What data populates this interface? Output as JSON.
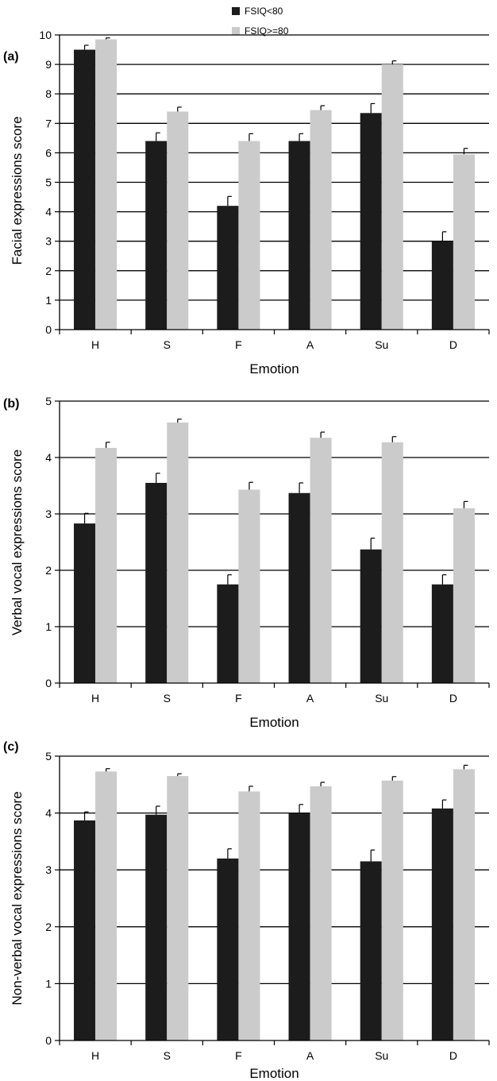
{
  "legend": {
    "series1_label": "FSIQ<80",
    "series2_label": "FSIQ>=80",
    "placement": "top-center"
  },
  "colors": {
    "series1": "#1c1c1c",
    "series2": "#cbcbcb",
    "axis": "#000000",
    "grid": "#000000"
  },
  "chart_data": [
    {
      "type": "bar",
      "panel_label": "(a)",
      "categories": [
        "H",
        "S",
        "F",
        "A",
        "Su",
        "D"
      ],
      "xlabel": "Emotion",
      "ylabel": "Facial expressions score",
      "ylim": [
        0,
        10
      ],
      "yticks": [
        "0",
        "1",
        "2",
        "3",
        "4",
        "5",
        "6",
        "7",
        "8",
        "9",
        "10"
      ],
      "grid": true,
      "series": [
        {
          "name": "FSIQ<80",
          "values": [
            9.5,
            6.4,
            4.2,
            6.4,
            7.35,
            3.0
          ],
          "errors": [
            0.15,
            0.28,
            0.32,
            0.25,
            0.32,
            0.32
          ]
        },
        {
          "name": "FSIQ>=80",
          "values": [
            9.85,
            7.4,
            6.4,
            7.45,
            9.0,
            5.95
          ],
          "errors": [
            0.05,
            0.15,
            0.25,
            0.15,
            0.12,
            0.2
          ]
        }
      ]
    },
    {
      "type": "bar",
      "panel_label": "(b)",
      "categories": [
        "H",
        "S",
        "F",
        "A",
        "Su",
        "D"
      ],
      "xlabel": "Emotion",
      "ylabel": "Verbal vocal expressions score",
      "ylim": [
        0,
        5
      ],
      "yticks": [
        "0",
        "1",
        "2",
        "3",
        "4",
        "5"
      ],
      "grid": true,
      "series": [
        {
          "name": "FSIQ<80",
          "values": [
            2.83,
            3.55,
            1.75,
            3.37,
            2.37,
            1.75
          ],
          "errors": [
            0.18,
            0.17,
            0.17,
            0.18,
            0.2,
            0.17
          ]
        },
        {
          "name": "FSIQ>=80",
          "values": [
            4.17,
            4.62,
            3.43,
            4.35,
            4.27,
            3.1
          ],
          "errors": [
            0.1,
            0.06,
            0.13,
            0.1,
            0.1,
            0.12
          ]
        }
      ]
    },
    {
      "type": "bar",
      "panel_label": "(c)",
      "categories": [
        "H",
        "S",
        "F",
        "A",
        "Su",
        "D"
      ],
      "xlabel": "Emotion",
      "ylabel": "Non-verbal vocal expressions score",
      "ylim": [
        0,
        5
      ],
      "yticks": [
        "0",
        "1",
        "2",
        "3",
        "4",
        "5"
      ],
      "grid": true,
      "series": [
        {
          "name": "FSIQ<80",
          "values": [
            3.87,
            3.97,
            3.2,
            4.0,
            3.15,
            4.08
          ],
          "errors": [
            0.15,
            0.15,
            0.17,
            0.15,
            0.2,
            0.15
          ]
        },
        {
          "name": "FSIQ>=80",
          "values": [
            4.73,
            4.65,
            4.38,
            4.47,
            4.57,
            4.77
          ],
          "errors": [
            0.05,
            0.04,
            0.09,
            0.07,
            0.07,
            0.07
          ]
        }
      ]
    }
  ]
}
